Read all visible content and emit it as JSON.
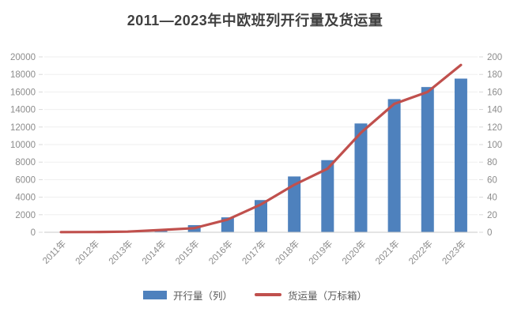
{
  "title": "2011—2023年中欧班列开行量及货运量",
  "legend": {
    "bars_label": "开行量（列）",
    "line_label": "货运量（万标箱）"
  },
  "colors": {
    "bar": "#4e81bd",
    "line": "#c0504d",
    "grid": "#efefef",
    "axis_line": "#c8c8c8",
    "tick": "#d9d9d9",
    "axis_text": "#8c8c8c",
    "title_text": "#3f3f3f",
    "legend_text": "#595959"
  },
  "chart_data": {
    "type": "bar+line combo",
    "title": "2011—2023年中欧班列开行量及货运量",
    "categories": [
      "2011年",
      "2012年",
      "2013年",
      "2014年",
      "2015年",
      "2016年",
      "2017年",
      "2018年",
      "2019年",
      "2020年",
      "2021年",
      "2022年",
      "2023年"
    ],
    "series": [
      {
        "name": "开行量（列）",
        "type": "bar",
        "axis": "left",
        "color": "#4e81bd",
        "values": [
          17,
          42,
          80,
          308,
          815,
          1702,
          3673,
          6363,
          8225,
          12406,
          15183,
          16562,
          17523
        ]
      },
      {
        "name": "货运量（万标箱）",
        "type": "line",
        "axis": "right",
        "color": "#c0504d",
        "values": [
          0.14,
          0.25,
          0.7,
          2.6,
          4.7,
          14.5,
          31.7,
          54.1,
          72.5,
          113.5,
          146.4,
          160,
          190.7
        ]
      }
    ],
    "left_axis": {
      "min": 0,
      "max": 20000,
      "step": 2000,
      "ticks": [
        0,
        2000,
        4000,
        6000,
        8000,
        10000,
        12000,
        14000,
        16000,
        18000,
        20000
      ]
    },
    "right_axis": {
      "min": 0,
      "max": 200,
      "step": 20,
      "ticks": [
        0,
        20,
        40,
        60,
        80,
        100,
        120,
        140,
        160,
        180,
        200
      ]
    },
    "grid": true,
    "x_label_rotation": -45,
    "legend_position": "bottom"
  }
}
